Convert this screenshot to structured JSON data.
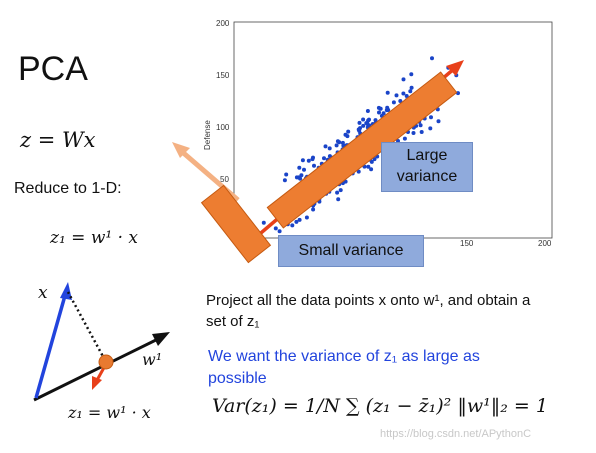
{
  "title": "PCA",
  "equation_main": "z = Wx",
  "reduce_text": "Reduce to 1-D:",
  "equation_z1": "z₁ = w¹ · x",
  "diagram": {
    "label_x": "x",
    "label_w": "w¹",
    "label_z1": "z₁ = w¹ · x",
    "vector_color": "#2244dd",
    "projection_color": "#e8401a",
    "point_color": "#e87a30"
  },
  "project_text": "Project all the data points x onto w¹, and obtain a set of z₁",
  "want_text": "We want the variance of z₁ as large as possible",
  "formula_text": "Var(z₁) = 1/N ∑ (z₁ − z̄₁)²   ‖w¹‖₂ = 1",
  "scatter": {
    "ylabel": "Defense",
    "y_ticks": [
      "200",
      "150",
      "100",
      "50"
    ],
    "x_ticks": [
      "150",
      "200"
    ],
    "dot_color": "#1a44c8",
    "large_variance_label": "Large variance",
    "small_variance_label": "Small variance",
    "large_bar_color": "#ed7d31",
    "arrow_color": "#e8401a",
    "small_arrow_color": "#f4b183"
  },
  "watermark": "https://blog.csdn.net/APythonC"
}
